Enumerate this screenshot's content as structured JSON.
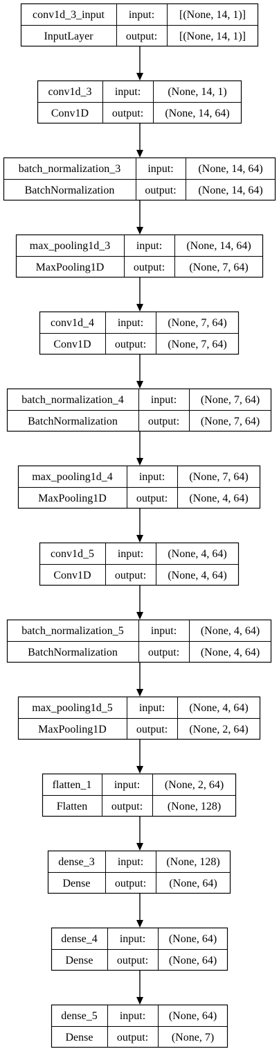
{
  "colors": {
    "stroke": "#000000",
    "text": "#000000",
    "background": "#ffffff"
  },
  "io_labels": {
    "input": "input:",
    "output": "output:"
  },
  "layers": [
    {
      "name": "conv1d_3_input",
      "type": "InputLayer",
      "input": "[(None, 14, 1)]",
      "output": "[(None, 14, 1)]"
    },
    {
      "name": "conv1d_3",
      "type": "Conv1D",
      "input": "(None, 14, 1)",
      "output": "(None, 14, 64)"
    },
    {
      "name": "batch_normalization_3",
      "type": "BatchNormalization",
      "input": "(None, 14, 64)",
      "output": "(None, 14, 64)"
    },
    {
      "name": "max_pooling1d_3",
      "type": "MaxPooling1D",
      "input": "(None, 14, 64)",
      "output": "(None, 7, 64)"
    },
    {
      "name": "conv1d_4",
      "type": "Conv1D",
      "input": "(None, 7, 64)",
      "output": "(None, 7, 64)"
    },
    {
      "name": "batch_normalization_4",
      "type": "BatchNormalization",
      "input": "(None, 7, 64)",
      "output": "(None, 7, 64)"
    },
    {
      "name": "max_pooling1d_4",
      "type": "MaxPooling1D",
      "input": "(None, 7, 64)",
      "output": "(None, 4, 64)"
    },
    {
      "name": "conv1d_5",
      "type": "Conv1D",
      "input": "(None, 4, 64)",
      "output": "(None, 4, 64)"
    },
    {
      "name": "batch_normalization_5",
      "type": "BatchNormalization",
      "input": "(None, 4, 64)",
      "output": "(None, 4, 64)"
    },
    {
      "name": "max_pooling1d_5",
      "type": "MaxPooling1D",
      "input": "(None, 4, 64)",
      "output": "(None, 2, 64)"
    },
    {
      "name": "flatten_1",
      "type": "Flatten",
      "input": "(None, 2, 64)",
      "output": "(None, 128)"
    },
    {
      "name": "dense_3",
      "type": "Dense",
      "input": "(None, 128)",
      "output": "(None, 64)"
    },
    {
      "name": "dense_4",
      "type": "Dense",
      "input": "(None, 64)",
      "output": "(None, 64)"
    },
    {
      "name": "dense_5",
      "type": "Dense",
      "input": "(None, 64)",
      "output": "(None, 7)"
    }
  ]
}
